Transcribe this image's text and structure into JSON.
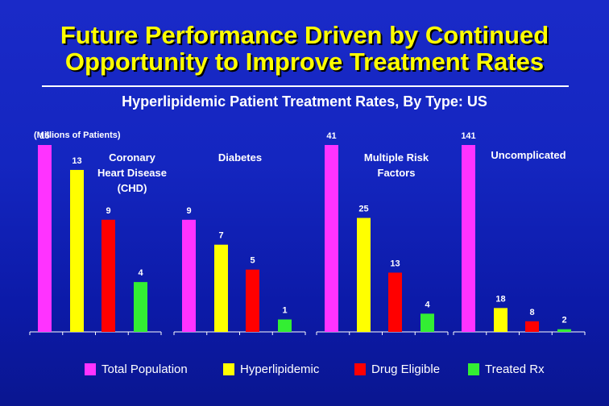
{
  "title": {
    "line1": "Future Performance Driven by Continued",
    "line2": "Opportunity to Improve Treatment Rates"
  },
  "subtitle": "Hyperlipidemic Patient Treatment Rates, By Type: US",
  "units_note": "(Millions of Patients)",
  "chart_data": {
    "type": "bar",
    "ylabel": "(Millions of Patients)",
    "series": [
      {
        "name": "Total Population",
        "color": "#ff33ff"
      },
      {
        "name": "Hyperlipidemic",
        "color": "#ffff00"
      },
      {
        "name": "Drug Eligible",
        "color": "#ff0000"
      },
      {
        "name": "Treated Rx",
        "color": "#33ee33"
      }
    ],
    "panels": [
      {
        "label_lines": [
          "Coronary",
          "Heart Disease",
          "(CHD)"
        ],
        "values": [
          15,
          13,
          9,
          4
        ],
        "value_labels": [
          "15",
          "13",
          "9",
          "4"
        ],
        "ymax": 15
      },
      {
        "label_lines": [
          "Diabetes"
        ],
        "values": [
          9,
          7,
          5,
          1
        ],
        "value_labels": [
          "9",
          "7",
          "5",
          "1"
        ],
        "ymax": 15
      },
      {
        "label_lines": [
          "Multiple Risk",
          "Factors"
        ],
        "values": [
          41,
          25,
          13,
          4
        ],
        "value_labels": [
          "41",
          "25",
          "13",
          "4"
        ],
        "ymax": 41
      },
      {
        "label_lines": [
          "Uncomplicated"
        ],
        "values": [
          141,
          18,
          8,
          2
        ],
        "value_labels": [
          "141",
          "18",
          "8",
          "2"
        ],
        "ymax": 141
      }
    ]
  },
  "legend": [
    {
      "label": "Total Population",
      "color": "#ff33ff"
    },
    {
      "label": "Hyperlipidemic",
      "color": "#ffff00"
    },
    {
      "label": "Drug Eligible",
      "color": "#ff0000"
    },
    {
      "label": "Treated Rx",
      "color": "#33ee33"
    }
  ]
}
